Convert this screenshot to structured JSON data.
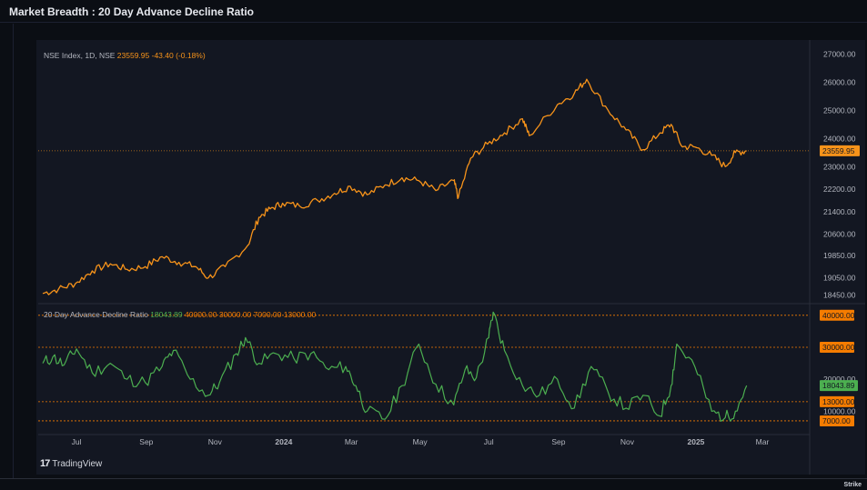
{
  "app": {
    "title": "Market Breadth : 20 Day Advance Decline Ratio"
  },
  "branding": {
    "logo_text": "TradingView",
    "logo_mark": "17",
    "watermark": "Strike"
  },
  "colors": {
    "background": "#131722",
    "price_line": "#f7931a",
    "ratio_line": "#4caf50",
    "level_line": "#f57c00",
    "text": "#b2b5be"
  },
  "chart_data": [
    {
      "type": "line",
      "legend": {
        "symbol": "NSE Index, 1D, NSE",
        "last_value": "23559.95",
        "change": "-43.40 (-0.18%)"
      },
      "yticks": [
        "27000.00",
        "26000.00",
        "25000.00",
        "24000.00",
        "23000.00",
        "22200.00",
        "21400.00",
        "20600.00",
        "19850.00",
        "19050.00",
        "18450.00"
      ],
      "last_price_label": "23559.95",
      "ylim": [
        18200,
        27300
      ],
      "series": [
        {
          "x": [
            "2023-06-01",
            "2023-06-15",
            "2023-06-30",
            "2023-07-15",
            "2023-07-31",
            "2023-08-15",
            "2023-08-31",
            "2023-09-15",
            "2023-09-30",
            "2023-10-15",
            "2023-10-26",
            "2023-11-10",
            "2023-11-30",
            "2023-12-10",
            "2023-12-20",
            "2023-12-31",
            "2024-01-15",
            "2024-01-31",
            "2024-02-15",
            "2024-02-29",
            "2024-03-15",
            "2024-03-31",
            "2024-04-15",
            "2024-04-30",
            "2024-05-15",
            "2024-05-31",
            "2024-06-04",
            "2024-06-15",
            "2024-06-30",
            "2024-07-15",
            "2024-07-31",
            "2024-08-06",
            "2024-08-31",
            "2024-09-15",
            "2024-09-26",
            "2024-10-15",
            "2024-10-31",
            "2024-11-15",
            "2024-11-30",
            "2024-12-10",
            "2024-12-20",
            "2024-12-31",
            "2025-01-15",
            "2025-01-27",
            "2025-02-05",
            "2025-02-15"
          ],
          "values": [
            18500,
            18650,
            18850,
            19300,
            19550,
            19350,
            19450,
            19800,
            19600,
            19450,
            19050,
            19450,
            20200,
            21200,
            21500,
            21700,
            21600,
            21800,
            22050,
            22300,
            22000,
            22350,
            22600,
            22500,
            22150,
            22500,
            21900,
            23300,
            23800,
            24200,
            24700,
            24100,
            25200,
            25600,
            26100,
            25000,
            24300,
            23600,
            24200,
            24500,
            23700,
            23700,
            23400,
            23000,
            23500,
            23560
          ]
        }
      ]
    },
    {
      "type": "line",
      "legend": {
        "name": "20 Day Advance Decline Ratio",
        "value": "18043.89",
        "levels_text": [
          "40000.00",
          "30000.00",
          "7000.00",
          "13000.00"
        ]
      },
      "yticks": [
        "20000.00",
        "10000.00"
      ],
      "level_lines": [
        40000,
        30000,
        13000,
        7000
      ],
      "level_labels": [
        "40000.00",
        "30000.00",
        "13000.00",
        "7000.00"
      ],
      "last_value_label": "18043.89",
      "ylim": [
        5000,
        42500
      ],
      "series": [
        {
          "x": [
            "2023-06-01",
            "2023-06-10",
            "2023-06-20",
            "2023-07-01",
            "2023-07-15",
            "2023-07-31",
            "2023-08-15",
            "2023-08-31",
            "2023-09-15",
            "2023-09-25",
            "2023-10-10",
            "2023-10-26",
            "2023-11-05",
            "2023-11-20",
            "2023-11-28",
            "2023-12-10",
            "2023-12-25",
            "2024-01-10",
            "2024-01-25",
            "2024-02-10",
            "2024-02-25",
            "2024-03-05",
            "2024-03-15",
            "2024-03-31",
            "2024-04-15",
            "2024-04-30",
            "2024-05-15",
            "2024-05-31",
            "2024-06-10",
            "2024-06-20",
            "2024-07-01",
            "2024-07-05",
            "2024-07-15",
            "2024-07-31",
            "2024-08-15",
            "2024-08-31",
            "2024-09-15",
            "2024-09-30",
            "2024-10-15",
            "2024-10-31",
            "2024-11-15",
            "2024-11-30",
            "2024-12-10",
            "2024-12-15",
            "2024-12-31",
            "2025-01-15",
            "2025-01-27",
            "2025-02-05",
            "2025-02-15"
          ],
          "values": [
            25000,
            27000,
            24500,
            29500,
            22000,
            25000,
            20000,
            19000,
            24000,
            29000,
            20000,
            15000,
            19000,
            28000,
            33000,
            25000,
            28000,
            26500,
            28000,
            23000,
            24000,
            18000,
            10000,
            7500,
            18000,
            31000,
            18500,
            12000,
            23000,
            20500,
            33000,
            41000,
            29000,
            18000,
            15000,
            20000,
            11000,
            24000,
            16000,
            11000,
            15000,
            8500,
            18000,
            31000,
            24000,
            10000,
            8000,
            10000,
            18044
          ]
        }
      ]
    }
  ],
  "x_axis": {
    "labels": [
      {
        "text": "Jul",
        "date": "2023-07-01"
      },
      {
        "text": "Sep",
        "date": "2023-09-01"
      },
      {
        "text": "Nov",
        "date": "2023-11-01"
      },
      {
        "text": "2024",
        "date": "2024-01-01"
      },
      {
        "text": "Mar",
        "date": "2024-03-01"
      },
      {
        "text": "May",
        "date": "2024-05-01"
      },
      {
        "text": "Jul",
        "date": "2024-07-01"
      },
      {
        "text": "Sep",
        "date": "2024-09-01"
      },
      {
        "text": "Nov",
        "date": "2024-11-01"
      },
      {
        "text": "2025",
        "date": "2025-01-01"
      },
      {
        "text": "Mar",
        "date": "2025-03-01"
      }
    ],
    "range": [
      "2023-05-28",
      "2025-04-12"
    ]
  }
}
